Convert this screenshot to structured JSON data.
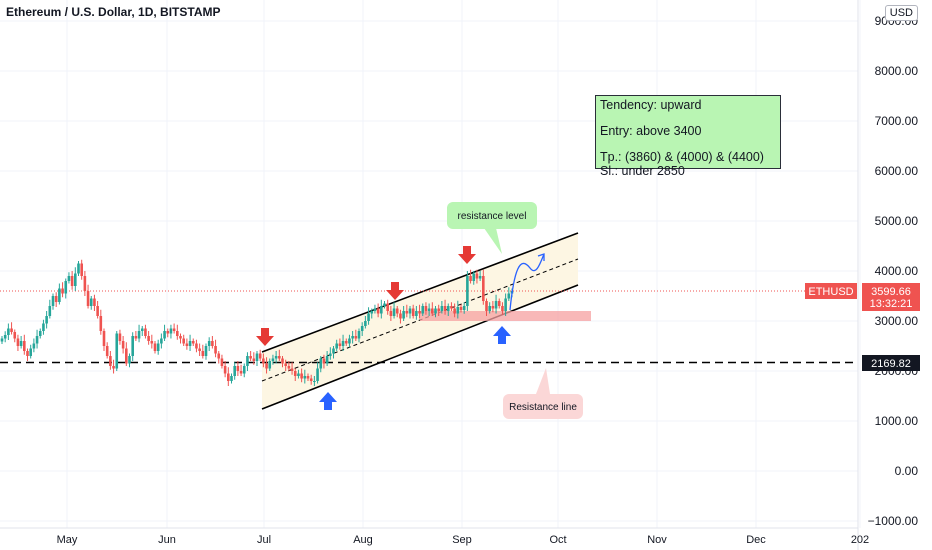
{
  "header": {
    "title": "Ethereum / U.S. Dollar, 1D, BITSTAMP",
    "currency": "USD"
  },
  "annotation_box": {
    "lines": [
      "Tendency: upward",
      "Entry: above 3400",
      "Tp.: (3860) & (4000) & (4400)",
      "Sl.: under 2850"
    ]
  },
  "callouts": {
    "resistance_level": "resistance level",
    "resistance_line": "Resistance line"
  },
  "price_tags": {
    "symbol": "ETHUSD",
    "price": "3599.66",
    "countdown": "13:32:21",
    "level": "2169.82"
  },
  "colors": {
    "up": "#26a69a",
    "down": "#ef5350",
    "arrow_down": "#e53935",
    "arrow_up": "#2962ff",
    "channel_fill": "#fdf6e3",
    "zone": "#f6a0a0",
    "callout_green": "#b9f5b3",
    "callout_pink": "#fbd7d7"
  },
  "chart_data": {
    "type": "candlestick",
    "title": "Ethereum / U.S. Dollar, 1D, BITSTAMP",
    "x_ticks": [
      "May",
      "Jun",
      "Jul",
      "Aug",
      "Sep",
      "Oct",
      "Nov",
      "Dec",
      "202"
    ],
    "y_ticks": [
      "−1000.00",
      "0.00",
      "1000.00",
      "2000.00",
      "3000.00",
      "4000.00",
      "5000.00",
      "6000.00",
      "7000.00",
      "8000.00",
      "9000.00"
    ],
    "ylim": [
      -1000,
      9000
    ],
    "grid": true,
    "last_price": 3599.66,
    "horizontal_level": 2169.82,
    "support_zone": [
      3000,
      3200
    ],
    "closes": [
      2650,
      2720,
      2850,
      2780,
      2650,
      2500,
      2600,
      2400,
      2300,
      2450,
      2550,
      2700,
      2800,
      2950,
      3100,
      3300,
      3500,
      3380,
      3650,
      3550,
      3800,
      3900,
      3700,
      3950,
      4150,
      3900,
      3600,
      3300,
      3450,
      3300,
      3100,
      2800,
      2500,
      2300,
      2100,
      2050,
      2750,
      2600,
      2450,
      2150,
      2300,
      2700,
      2650,
      2800,
      2850,
      2700,
      2600,
      2550,
      2400,
      2550,
      2650,
      2800,
      2750,
      2850,
      2800,
      2700,
      2650,
      2550,
      2500,
      2600,
      2550,
      2450,
      2400,
      2300,
      2500,
      2600,
      2500,
      2350,
      2250,
      2100,
      1950,
      1800,
      1900,
      2100,
      2000,
      1950,
      2100,
      2300,
      2250,
      2200,
      2350,
      2250,
      2150,
      2050,
      2200,
      2250,
      2300,
      2250,
      2150,
      2100,
      2050,
      2000,
      1900,
      1950,
      1850,
      1900,
      1850,
      1800,
      1800,
      2050,
      2250,
      2150,
      2300,
      2350,
      2450,
      2550,
      2500,
      2600,
      2550,
      2650,
      2700,
      2650,
      2800,
      2900,
      3000,
      3150,
      3200,
      3250,
      3150,
      3300,
      3350,
      3200,
      3100,
      3250,
      3150,
      3050,
      3200,
      3150,
      3250,
      3100,
      3200,
      3150,
      3300,
      3200,
      3250,
      3150,
      3250,
      3200,
      3300,
      3200,
      3300,
      3250,
      3150,
      3280,
      3220,
      3300,
      3900,
      3800,
      3950,
      3850,
      3900,
      3400,
      3200,
      3300,
      3250,
      3400,
      3300,
      3200,
      3450,
      3550,
      3600
    ]
  }
}
